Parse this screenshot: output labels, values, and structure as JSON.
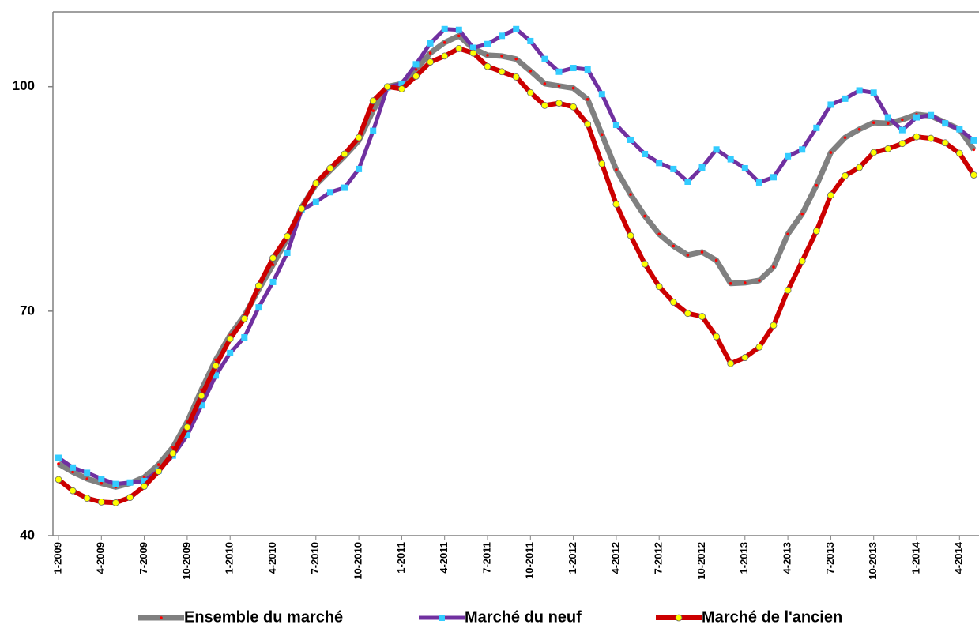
{
  "chart_data": {
    "type": "line",
    "categories": [
      "1-2009",
      null,
      null,
      "4-2009",
      null,
      null,
      "7-2009",
      null,
      null,
      "10-2009",
      null,
      null,
      "1-2010",
      null,
      null,
      "4-2010",
      null,
      null,
      "7-2010",
      null,
      null,
      "10-2010",
      null,
      null,
      "1-2011",
      null,
      null,
      "4-2011",
      null,
      null,
      "7-2011",
      null,
      null,
      "10-2011",
      null,
      null,
      "1-2012",
      null,
      null,
      "4-2012",
      null,
      null,
      "7-2012",
      null,
      null,
      "10-2012",
      null,
      null,
      "1-2013",
      null,
      null,
      "4-2013",
      null,
      null,
      "7-2013",
      null,
      null,
      "10-2013",
      null,
      null,
      "1-2014",
      null,
      null,
      "4-2014",
      null
    ],
    "ylim": [
      40,
      110
    ],
    "yticks": [
      40,
      70,
      100
    ],
    "series": [
      {
        "name": "Ensemble du marché",
        "color": "#808080",
        "marker_color": "#ff0000",
        "marker": "dot",
        "values": [
          49.6,
          48.5,
          47.6,
          47.0,
          46.5,
          47.0,
          47.8,
          49.5,
          51.8,
          55.2,
          59.5,
          63.5,
          66.8,
          69.4,
          72.9,
          76.2,
          79.7,
          83.9,
          86.9,
          88.8,
          90.7,
          92.8,
          96.8,
          100,
          100.4,
          102.3,
          104.5,
          105.9,
          106.8,
          105.1,
          104.2,
          104.1,
          103.7,
          102.1,
          100.4,
          100.1,
          99.8,
          98.3,
          93.6,
          88.9,
          85.6,
          82.7,
          80.3,
          78.7,
          77.5,
          77.9,
          76.8,
          73.7,
          73.8,
          74.1,
          75.9,
          80.3,
          83.0,
          86.8,
          91.2,
          93.2,
          94.3,
          95.2,
          95.1,
          95.6,
          96.3,
          96.1,
          95.2,
          94.3,
          91.6
        ]
      },
      {
        "name": "Marché du neuf",
        "color": "#7030a0",
        "marker_color": "#33ccff",
        "marker": "square",
        "values": [
          50.4,
          49.1,
          48.4,
          47.6,
          46.9,
          47.1,
          47.3,
          48.7,
          50.7,
          53.4,
          57.4,
          61.4,
          64.4,
          66.5,
          70.5,
          73.9,
          77.8,
          83.5,
          84.6,
          85.9,
          86.5,
          89.0,
          94.1,
          99.9,
          100.4,
          103.0,
          105.8,
          107.7,
          107.6,
          105.2,
          105.7,
          106.8,
          107.7,
          106.1,
          103.7,
          102.0,
          102.5,
          102.3,
          99.0,
          94.9,
          92.9,
          91.0,
          89.8,
          89.0,
          87.3,
          89.2,
          91.6,
          90.3,
          89.1,
          87.2,
          87.9,
          90.7,
          91.6,
          94.5,
          97.6,
          98.4,
          99.5,
          99.2,
          95.9,
          94.2,
          95.9,
          96.2,
          95.1,
          94.3,
          92.8
        ]
      },
      {
        "name": "Marché de l'ancien",
        "color": "#cc0000",
        "marker_color": "#ffff00",
        "marker": "circle",
        "values": [
          47.5,
          46.0,
          45.0,
          44.5,
          44.4,
          45.1,
          46.6,
          48.6,
          51.0,
          54.5,
          58.7,
          62.7,
          66.3,
          69.0,
          73.4,
          77.1,
          80.0,
          83.7,
          87.1,
          89.1,
          91.0,
          93.2,
          98.1,
          100,
          99.7,
          101.4,
          103.3,
          104.1,
          105.1,
          104.5,
          102.7,
          102.0,
          101.3,
          99.2,
          97.5,
          97.8,
          97.3,
          95.0,
          89.7,
          84.3,
          80.1,
          76.3,
          73.3,
          71.2,
          69.7,
          69.3,
          66.6,
          63.0,
          63.8,
          65.2,
          68.1,
          72.8,
          76.7,
          80.7,
          85.5,
          88.1,
          89.2,
          91.2,
          91.7,
          92.4,
          93.3,
          93.1,
          92.5,
          91.1,
          88.2
        ]
      }
    ]
  }
}
